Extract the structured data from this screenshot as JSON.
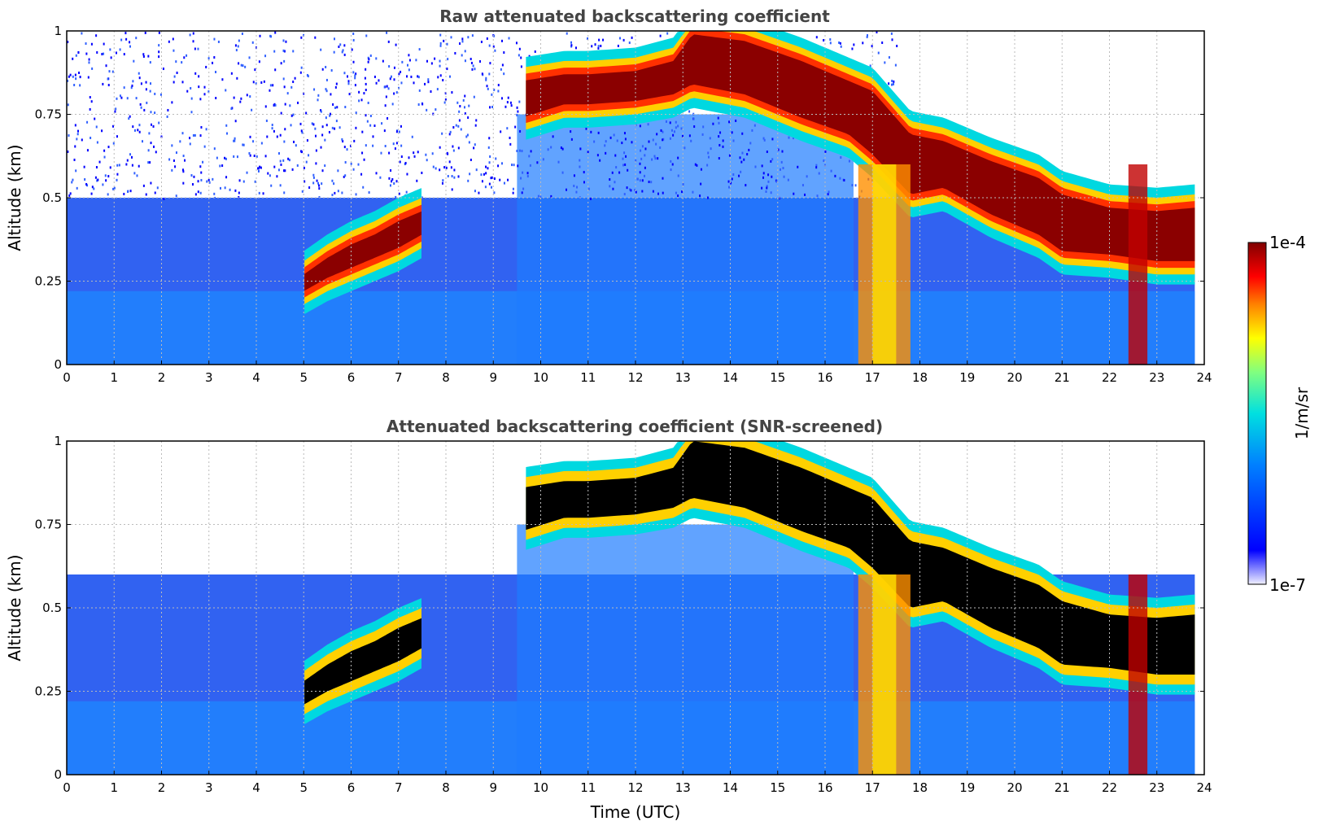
{
  "chart_data": [
    {
      "type": "heatmap",
      "title": "Raw attenuated backscattering coefficient",
      "xlabel": "",
      "ylabel": "Altitude (km)",
      "xlim": [
        0,
        24
      ],
      "ylim": [
        0,
        1
      ],
      "x_ticks": [
        "0",
        "1",
        "2",
        "3",
        "4",
        "5",
        "6",
        "7",
        "8",
        "9",
        "10",
        "11",
        "12",
        "13",
        "14",
        "15",
        "16",
        "17",
        "18",
        "19",
        "20",
        "21",
        "22",
        "23",
        "24"
      ],
      "y_ticks": [
        "0",
        "0.25",
        "0.5",
        "0.75",
        "1"
      ],
      "grid": true,
      "screened": false,
      "cloud_layers": [
        {
          "t": [
            5.0,
            5.5,
            6.0,
            6.5,
            7.0,
            7.5
          ],
          "base": [
            0.21,
            0.25,
            0.28,
            0.31,
            0.34,
            0.38
          ],
          "top": [
            0.28,
            0.33,
            0.37,
            0.4,
            0.44,
            0.47
          ]
        },
        {
          "t": [
            9.6,
            10.5,
            11.0,
            12.0,
            12.8,
            13.2,
            14.3,
            15.5,
            16.5,
            17.0,
            17.8,
            18.5,
            19.5,
            20.5,
            21.0,
            22.0,
            23.0,
            23.8
          ],
          "base": [
            0.73,
            0.77,
            0.77,
            0.78,
            0.8,
            0.83,
            0.8,
            0.73,
            0.68,
            0.62,
            0.5,
            0.52,
            0.44,
            0.38,
            0.33,
            0.32,
            0.3,
            0.3
          ],
          "top": [
            0.86,
            0.88,
            0.88,
            0.89,
            0.92,
            1.0,
            0.98,
            0.92,
            0.86,
            0.83,
            0.7,
            0.68,
            0.62,
            0.57,
            0.52,
            0.48,
            0.47,
            0.48
          ]
        }
      ]
    },
    {
      "type": "heatmap",
      "title": "Attenuated backscattering coefficient (SNR-screened)",
      "xlabel": "Time (UTC)",
      "ylabel": "Altitude (km)",
      "xlim": [
        0,
        24
      ],
      "ylim": [
        0,
        1
      ],
      "x_ticks": [
        "0",
        "1",
        "2",
        "3",
        "4",
        "5",
        "6",
        "7",
        "8",
        "9",
        "10",
        "11",
        "12",
        "13",
        "14",
        "15",
        "16",
        "17",
        "18",
        "19",
        "20",
        "21",
        "22",
        "23",
        "24"
      ],
      "y_ticks": [
        "0",
        "0.25",
        "0.5",
        "0.75",
        "1"
      ],
      "grid": true,
      "screened": true,
      "cloud_layers": [
        {
          "t": [
            5.0,
            5.5,
            6.0,
            6.5,
            7.0,
            7.5
          ],
          "base": [
            0.21,
            0.25,
            0.28,
            0.31,
            0.34,
            0.38
          ],
          "top": [
            0.28,
            0.33,
            0.37,
            0.4,
            0.44,
            0.47
          ]
        },
        {
          "t": [
            9.6,
            10.5,
            11.0,
            12.0,
            12.8,
            13.2,
            14.3,
            15.5,
            16.5,
            17.0,
            17.8,
            18.5,
            19.5,
            20.5,
            21.0,
            22.0,
            23.0,
            23.8
          ],
          "base": [
            0.73,
            0.77,
            0.77,
            0.78,
            0.8,
            0.83,
            0.8,
            0.73,
            0.68,
            0.62,
            0.5,
            0.52,
            0.44,
            0.38,
            0.33,
            0.32,
            0.3,
            0.3
          ],
          "top": [
            0.86,
            0.88,
            0.88,
            0.89,
            0.92,
            1.0,
            0.98,
            0.92,
            0.86,
            0.83,
            0.7,
            0.68,
            0.62,
            0.57,
            0.52,
            0.48,
            0.47,
            0.48
          ]
        }
      ]
    }
  ],
  "colorbar": {
    "label": "1/m/sr",
    "min_label": "1e-7",
    "max_label": "1e-4",
    "colormap": [
      "#f0f0ff",
      "#0000ff",
      "#0080ff",
      "#00e0e0",
      "#80ff80",
      "#ffff00",
      "#ff8000",
      "#ff0000",
      "#800000"
    ]
  }
}
